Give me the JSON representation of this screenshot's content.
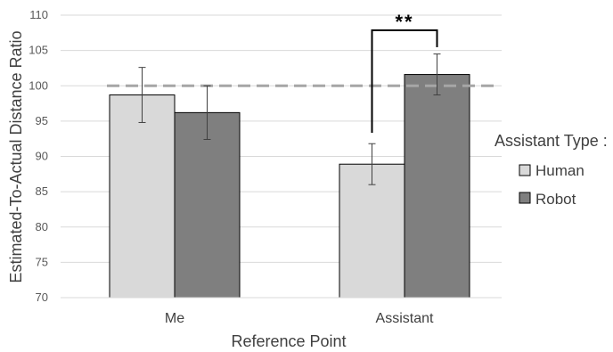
{
  "chart_data": {
    "type": "bar",
    "categories": [
      "Me",
      "Assistant"
    ],
    "series": [
      {
        "name": "Human",
        "values": [
          98.7,
          88.9
        ],
        "errors": [
          3.9,
          2.9
        ],
        "color": "#d9d9d9"
      },
      {
        "name": "Robot",
        "values": [
          96.2,
          101.6
        ],
        "errors": [
          3.8,
          2.9
        ],
        "color": "#7f7f7f"
      }
    ],
    "xlabel": "Reference Point",
    "ylabel": "Estimated-To-Actual Distance Ratio",
    "ylim": [
      70,
      110
    ],
    "yticks": [
      70,
      75,
      80,
      85,
      90,
      95,
      100,
      105,
      110
    ],
    "reference_line": {
      "value": 100,
      "style": "dashed",
      "color": "#a6a6a6"
    },
    "significance": {
      "category": "Assistant",
      "label": "**"
    },
    "legend": {
      "title": "Assistant Type :",
      "placement": "right"
    },
    "grid": true
  }
}
